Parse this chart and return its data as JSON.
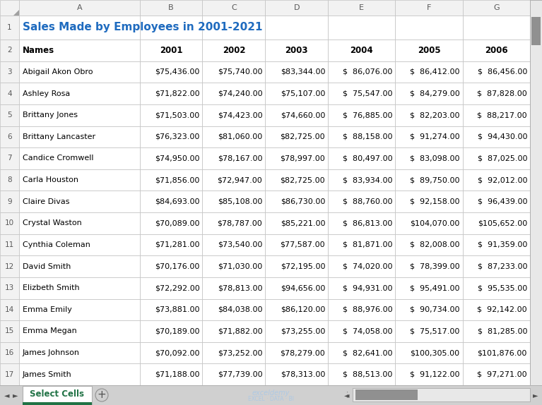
{
  "title": "Sales Made by Employees in 2001-2021",
  "title_color": "#1F6BBF",
  "sheet_tab": "Select Cells",
  "sheet_tab_color": "#217346",
  "col_headers": [
    "A",
    "B",
    "C",
    "D",
    "E",
    "F",
    "G"
  ],
  "headers": [
    "Names",
    "2001",
    "2002",
    "2003",
    "2004",
    "2005",
    "2006"
  ],
  "data": [
    [
      "Abigail Akon Obro",
      "$75,436.00",
      "$75,740.00",
      "$83,344.00",
      "$  86,076.00",
      "$  86,412.00",
      "$  86,456.00"
    ],
    [
      "Ashley Rosa",
      "$71,822.00",
      "$74,240.00",
      "$75,107.00",
      "$  75,547.00",
      "$  84,279.00",
      "$  87,828.00"
    ],
    [
      "Brittany Jones",
      "$71,503.00",
      "$74,423.00",
      "$74,660.00",
      "$  76,885.00",
      "$  82,203.00",
      "$  88,217.00"
    ],
    [
      "Brittany Lancaster",
      "$76,323.00",
      "$81,060.00",
      "$82,725.00",
      "$  88,158.00",
      "$  91,274.00",
      "$  94,430.00"
    ],
    [
      "Candice Cromwell",
      "$74,950.00",
      "$78,167.00",
      "$78,997.00",
      "$  80,497.00",
      "$  83,098.00",
      "$  87,025.00"
    ],
    [
      "Carla Houston",
      "$71,856.00",
      "$72,947.00",
      "$82,725.00",
      "$  83,934.00",
      "$  89,750.00",
      "$  92,012.00"
    ],
    [
      "Claire Divas",
      "$84,693.00",
      "$85,108.00",
      "$86,730.00",
      "$  88,760.00",
      "$  92,158.00",
      "$  96,439.00"
    ],
    [
      "Crystal Waston",
      "$70,089.00",
      "$78,787.00",
      "$85,221.00",
      "$  86,813.00",
      "$104,070.00",
      "$105,652.00"
    ],
    [
      "Cynthia Coleman",
      "$71,281.00",
      "$73,540.00",
      "$77,587.00",
      "$  81,871.00",
      "$  82,008.00",
      "$  91,359.00"
    ],
    [
      "David Smith",
      "$70,176.00",
      "$71,030.00",
      "$72,195.00",
      "$  74,020.00",
      "$  78,399.00",
      "$  87,233.00"
    ],
    [
      "Elizbeth Smith",
      "$72,292.00",
      "$78,813.00",
      "$94,656.00",
      "$  94,931.00",
      "$  95,491.00",
      "$  95,535.00"
    ],
    [
      "Emma Emily",
      "$73,881.00",
      "$84,038.00",
      "$86,120.00",
      "$  88,976.00",
      "$  90,734.00",
      "$  92,142.00"
    ],
    [
      "Emma Megan",
      "$70,189.00",
      "$71,882.00",
      "$73,255.00",
      "$  74,058.00",
      "$  75,517.00",
      "$  81,285.00"
    ],
    [
      "James Johnson",
      "$70,092.00",
      "$73,252.00",
      "$78,279.00",
      "$  82,641.00",
      "$100,305.00",
      "$101,876.00"
    ],
    [
      "James Smith",
      "$71,188.00",
      "$77,739.00",
      "$78,313.00",
      "$  88,513.00",
      "$  91,122.00",
      "$  97,271.00"
    ]
  ],
  "fig_bg": "#C8C8C8",
  "cell_bg": "#FFFFFF",
  "header_bg": "#F2F2F2",
  "grid_color": "#C0C0C0",
  "border_dark": "#A0A0A0",
  "row_num_color": "#595959",
  "col_hdr_color": "#595959",
  "watermark_color": "#A8C8E8",
  "tab_color": "#217346",
  "scrollbar_track": "#E8E8E8",
  "scrollbar_thumb": "#909090"
}
